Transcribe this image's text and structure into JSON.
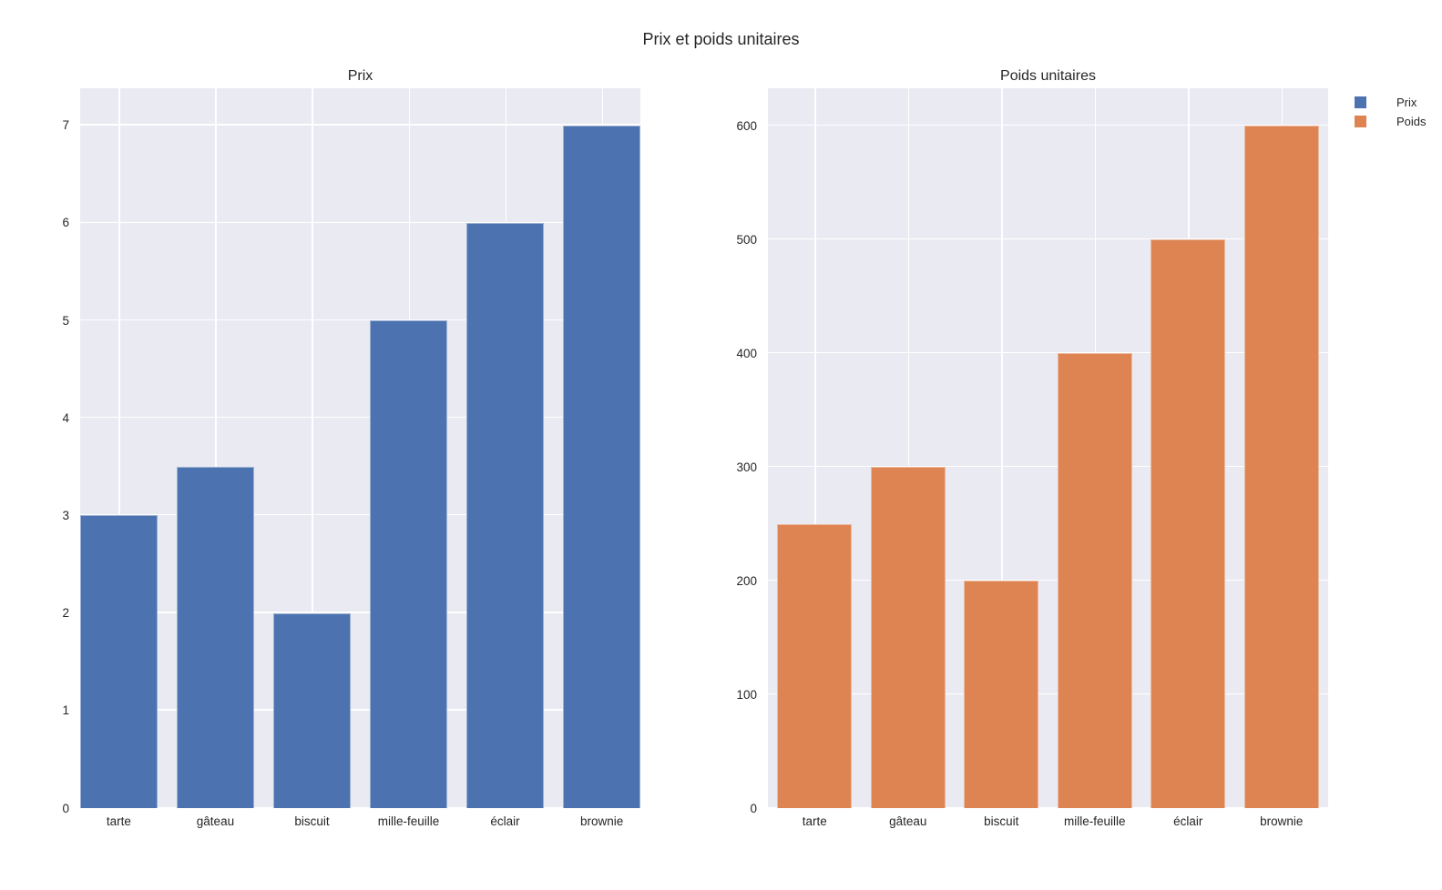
{
  "figure": {
    "title": "Prix et poids unitaires"
  },
  "legend": {
    "position": "top-right-outside",
    "items": [
      {
        "label": "Prix",
        "color": "#4c72b0"
      },
      {
        "label": "Poids",
        "color": "#dd8452"
      }
    ]
  },
  "chart_data": [
    {
      "type": "bar",
      "title": "Prix",
      "series_name": "Prix",
      "categories": [
        "tarte",
        "gâteau",
        "biscuit",
        "mille-feuille",
        "éclair",
        "brownie"
      ],
      "values": [
        3,
        3.5,
        2,
        5,
        6,
        7
      ],
      "bar_color": "#4c72b0",
      "bar_width": 0.8,
      "xlim": [
        -0.4,
        5.4
      ],
      "ylim": [
        0,
        7.38
      ],
      "yticks": [
        0,
        1,
        2,
        3,
        4,
        5,
        6,
        7
      ],
      "xlabel": "",
      "ylabel": "",
      "grid": true
    },
    {
      "type": "bar",
      "title": "Poids unitaires",
      "series_name": "Poids",
      "categories": [
        "tarte",
        "gâteau",
        "biscuit",
        "mille-feuille",
        "éclair",
        "brownie"
      ],
      "values": [
        250,
        300,
        200,
        400,
        500,
        600
      ],
      "bar_color": "#dd8452",
      "bar_width": 0.8,
      "xlim": [
        -0.5,
        5.5
      ],
      "ylim": [
        0,
        633
      ],
      "yticks": [
        0,
        100,
        200,
        300,
        400,
        500,
        600
      ],
      "xlabel": "",
      "ylabel": "",
      "grid": true
    }
  ],
  "style": {
    "figure_background": "#ffffff",
    "plot_background": "#eaeaf2",
    "grid_color": "#ffffff",
    "text_color": "#262626"
  }
}
